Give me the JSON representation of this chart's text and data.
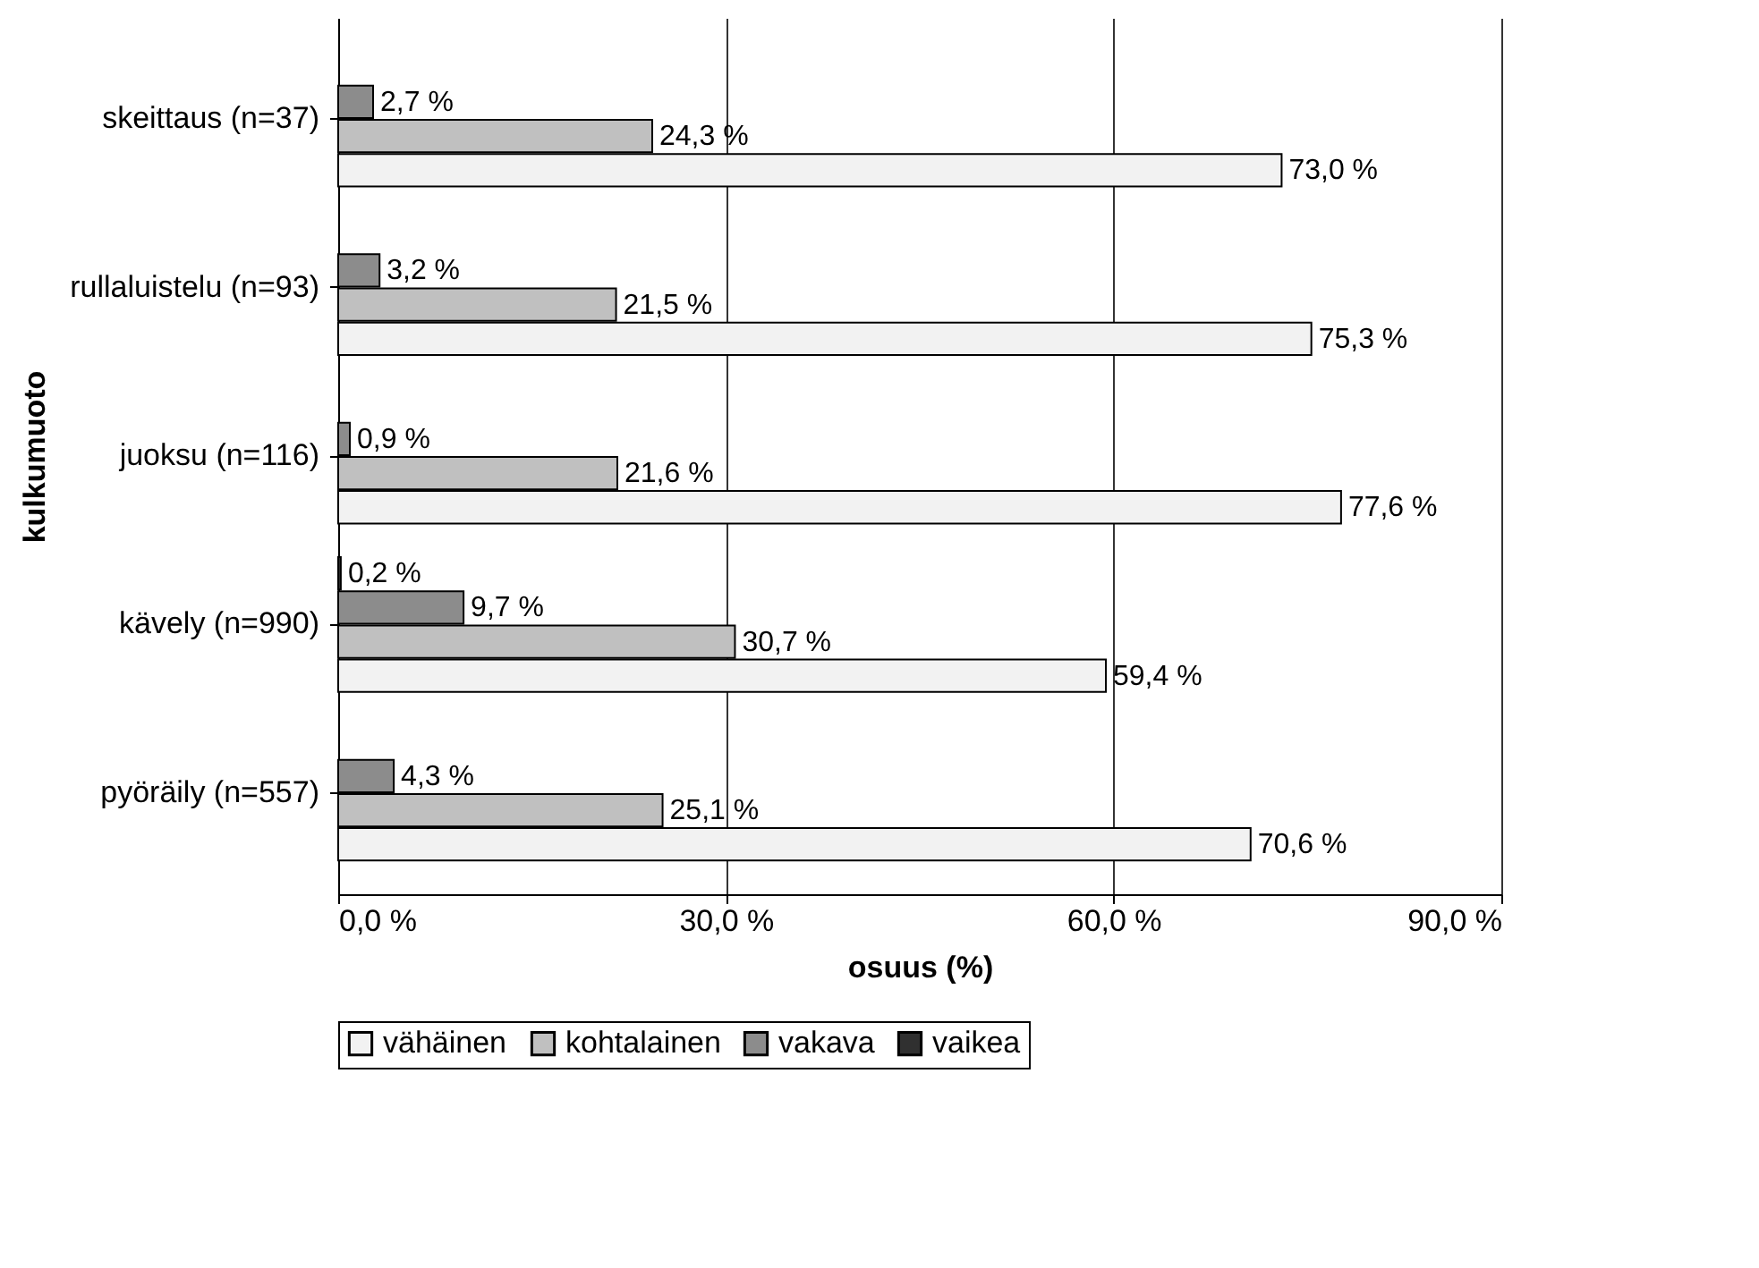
{
  "chart_data": {
    "type": "bar",
    "orientation": "horizontal",
    "xlabel": "osuus (%)",
    "ylabel": "kulkumuoto",
    "categories": [
      "skeittaus (n=37)",
      "rullaluistelu (n=93)",
      "juoksu (n=116)",
      "kävely (n=990)",
      "pyöräily (n=557)"
    ],
    "series": [
      {
        "name": "vähäinen",
        "color": "#f2f2f2",
        "values": [
          73.0,
          75.3,
          77.6,
          59.4,
          70.6
        ],
        "value_labels": [
          "73,0 %",
          "75,3 %",
          "77,6 %",
          "59,4 %",
          "70,6 %"
        ]
      },
      {
        "name": "kohtalainen",
        "color": "#c0c0c0",
        "values": [
          24.3,
          21.5,
          21.6,
          30.7,
          25.1
        ],
        "value_labels": [
          "24,3 %",
          "21,5 %",
          "21,6 %",
          "30,7 %",
          "25,1 %"
        ]
      },
      {
        "name": "vakava",
        "color": "#8c8c8c",
        "values": [
          2.7,
          3.2,
          0.9,
          9.7,
          4.3
        ],
        "value_labels": [
          "2,7 %",
          "3,2 %",
          "0,9 %",
          "9,7 %",
          "4,3 %"
        ]
      },
      {
        "name": "vaikea",
        "color": "#303030",
        "values": [
          null,
          null,
          null,
          0.2,
          null
        ],
        "value_labels": [
          null,
          null,
          null,
          "0,2 %",
          null
        ]
      }
    ],
    "xlim": [
      0,
      90
    ],
    "xticks": [
      {
        "value": 0,
        "label": "0,0 %"
      },
      {
        "value": 30,
        "label": "30,0 %"
      },
      {
        "value": 60,
        "label": "60,0 %"
      },
      {
        "value": 90,
        "label": "90,0 %"
      }
    ],
    "grid": "x",
    "legend": "bottom"
  }
}
